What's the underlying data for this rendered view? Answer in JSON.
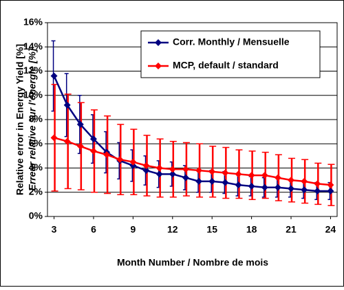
{
  "chart_data": {
    "type": "line",
    "y_label": [
      "Relative error in Energy Yield [%]",
      "Erreur relative sur l'énergie [%]"
    ],
    "x_label": "Month Number / Nombre de mois",
    "x": [
      3,
      4,
      5,
      6,
      7,
      8,
      9,
      10,
      11,
      12,
      13,
      14,
      15,
      16,
      17,
      18,
      19,
      20,
      21,
      22,
      23,
      24
    ],
    "xlim": [
      2.5,
      24.5
    ],
    "xticks": [
      3,
      6,
      9,
      12,
      15,
      18,
      21,
      24
    ],
    "ylim": [
      0,
      16
    ],
    "yticks": [
      {
        "value": 0,
        "label": "0%"
      },
      {
        "value": 2,
        "label": "2%"
      },
      {
        "value": 4,
        "label": "4%"
      },
      {
        "value": 6,
        "label": "6%"
      },
      {
        "value": 8,
        "label": "8%"
      },
      {
        "value": 10,
        "label": "10%"
      },
      {
        "value": 12,
        "label": "12%"
      },
      {
        "value": 14,
        "label": "14%"
      },
      {
        "value": 16,
        "label": "16%"
      }
    ],
    "grid": true,
    "legend": "top-right",
    "series": [
      {
        "name": "Corr. Monthly / Mensuelle",
        "color": "#000080",
        "values": [
          11.6,
          9.2,
          7.6,
          6.4,
          5.3,
          4.6,
          4.2,
          3.8,
          3.5,
          3.5,
          3.2,
          2.9,
          2.9,
          2.8,
          2.6,
          2.5,
          2.4,
          2.4,
          2.3,
          2.2,
          2.1,
          2.1
        ],
        "errors": [
          2.9,
          2.6,
          2.4,
          2.0,
          1.7,
          1.5,
          1.3,
          1.2,
          1.1,
          1.0,
          1.0,
          0.9,
          0.9,
          0.9,
          0.9,
          0.8,
          0.8,
          0.8,
          0.7,
          0.7,
          0.7,
          0.7
        ]
      },
      {
        "name": "MCP, default / standard",
        "color": "#ff0000",
        "values": [
          6.5,
          6.2,
          5.8,
          5.4,
          5.1,
          4.7,
          4.5,
          4.2,
          4.0,
          3.9,
          3.9,
          3.8,
          3.7,
          3.6,
          3.5,
          3.4,
          3.4,
          3.2,
          3.0,
          2.9,
          2.7,
          2.6
        ],
        "errors": [
          4.4,
          3.9,
          3.6,
          3.4,
          3.2,
          2.9,
          2.7,
          2.5,
          2.4,
          2.3,
          2.2,
          2.2,
          2.1,
          2.1,
          2.0,
          2.0,
          1.9,
          1.9,
          1.8,
          1.8,
          1.7,
          1.7
        ]
      }
    ]
  }
}
